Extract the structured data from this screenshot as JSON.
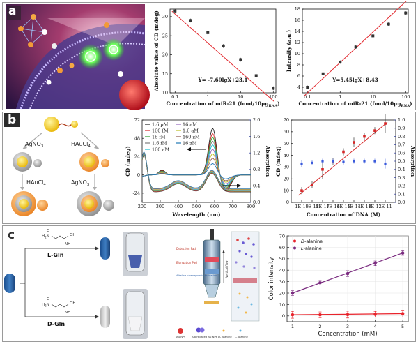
{
  "panel_labels": {
    "a": "a",
    "b": "b",
    "c": "c"
  },
  "a_illustration": {
    "type": "3D illustration of nanoparticle probes and a cell membrane"
  },
  "chart_data": [
    {
      "id": "a1",
      "type": "scatter",
      "title": "",
      "xlabel": "Concentration of miR-21 (fmol/10μg",
      "xlabel_sub": "RNA",
      "xlabel_end": ")",
      "ylabel": "Absolute value of CD (mdeg)",
      "xscale": "log",
      "xlim": [
        0.07,
        120
      ],
      "ylim": [
        10,
        32
      ],
      "xticks": [
        0.1,
        1,
        10,
        100
      ],
      "xtick_labels": [
        "0.1",
        "1",
        "10",
        "100"
      ],
      "yticks": [
        10,
        15,
        20,
        25,
        30
      ],
      "ytick_labels": [
        "10",
        "15",
        "20",
        "25",
        "30"
      ],
      "x": [
        0.1,
        0.3,
        1,
        3,
        10,
        30,
        100
      ],
      "y": [
        31.5,
        29.0,
        25.8,
        22.3,
        18.7,
        14.5,
        11.2
      ],
      "err": [
        0.5,
        0.5,
        0.5,
        0.5,
        0.5,
        0.5,
        0.5
      ],
      "fit": {
        "slope": -7.6,
        "intercept": 23.1
      },
      "equation": "Y= -7.60lgX+23.1"
    },
    {
      "id": "a2",
      "type": "scatter",
      "xlabel": "Concentration of miR-21 (fmol/10μg",
      "xlabel_sub": "RNA",
      "xlabel_end": ")",
      "ylabel": "Intensity (a.u.)",
      "xscale": "log",
      "xlim": [
        0.07,
        120
      ],
      "ylim": [
        3,
        18
      ],
      "xticks": [
        0.1,
        1,
        10,
        100
      ],
      "xtick_labels": [
        "0.1",
        "1",
        "10",
        "100"
      ],
      "yticks": [
        4,
        6,
        8,
        10,
        12,
        14,
        16,
        18
      ],
      "ytick_labels": [
        "4",
        "6",
        "8",
        "10",
        "12",
        "14",
        "16",
        "18"
      ],
      "x": [
        0.1,
        0.3,
        1,
        3,
        10,
        30,
        100
      ],
      "y": [
        4.0,
        6.4,
        8.5,
        11.2,
        13.2,
        15.3,
        17.3
      ],
      "err": [
        0.3,
        0.3,
        0.3,
        0.3,
        0.3,
        0.3,
        0.3
      ],
      "fit": {
        "slope": 5.45,
        "intercept": 8.43
      },
      "equation": "Y=5.45lgX+8.43"
    },
    {
      "id": "b1",
      "type": "line",
      "xlabel": "Wavelength (nm)",
      "ylabel": "CD (mdeg)",
      "ylabel_right": "Absorption",
      "xlim": [
        200,
        800
      ],
      "ylim": [
        -36,
        72
      ],
      "ylim_right": [
        0,
        2.0
      ],
      "xticks": [
        200,
        300,
        400,
        500,
        600,
        700,
        800
      ],
      "xtick_labels": [
        "200",
        "300",
        "400",
        "500",
        "600",
        "700",
        "800"
      ],
      "yticks": [
        -24,
        0,
        24,
        48,
        72
      ],
      "ytick_labels": [
        "-24",
        "0",
        "24",
        "48",
        "72"
      ],
      "yticks_right": [
        0.0,
        0.4,
        0.8,
        1.2,
        1.6,
        2.0
      ],
      "ytick_labels_right": [
        "0.0",
        "0.4",
        "0.8",
        "1.2",
        "1.6",
        "2.0"
      ],
      "series": [
        {
          "name": "1.6 pM",
          "color": "#222222",
          "peak": 62
        },
        {
          "name": "160 fM",
          "color": "#d62728",
          "peak": 55
        },
        {
          "name": "16 fM",
          "color": "#2ca02c",
          "peak": 50
        },
        {
          "name": "1.6 fM",
          "color": "#7f7f7f",
          "peak": 45
        },
        {
          "name": "160 aM",
          "color": "#17becf",
          "peak": 40
        },
        {
          "name": "16 aM",
          "color": "#9467bd",
          "peak": 34
        },
        {
          "name": "1.6 aM",
          "color": "#bcbd22",
          "peak": 28
        },
        {
          "name": "160 zM",
          "color": "#8c564b",
          "peak": 22
        },
        {
          "name": "16 zM",
          "color": "#1f77b4",
          "peak": 15
        }
      ],
      "legend_position": "top-left"
    },
    {
      "id": "b2",
      "type": "scatter",
      "xlabel": "Concentration of DNA (M)",
      "ylabel": "CD (mdeg)",
      "ylabel_right": "Absorption",
      "xlim": [
        0,
        10
      ],
      "ylim": [
        0,
        70
      ],
      "ylim_right": [
        0,
        1.0
      ],
      "xtick_labels": [
        "1E-19",
        "1E-18",
        "1E-17",
        "1E-16",
        "1E-15",
        "1E-14",
        "1E-13",
        "1E-12",
        "1E-11"
      ],
      "yticks": [
        0,
        10,
        20,
        30,
        40,
        50,
        60,
        70
      ],
      "ytick_labels": [
        "0",
        "10",
        "20",
        "30",
        "40",
        "50",
        "60",
        "70"
      ],
      "yticks_right": [
        0.0,
        0.1,
        0.2,
        0.3,
        0.4,
        0.5,
        0.6,
        0.7,
        0.8,
        0.9,
        1.0
      ],
      "ytick_labels_right": [
        "0.0",
        "0.1",
        "0.2",
        "0.3",
        "0.4",
        "0.5",
        "0.6",
        "0.7",
        "0.8",
        "0.9",
        "1.0"
      ],
      "series": [
        {
          "name": "CD",
          "color": "#d62728",
          "x": [
            1,
            2,
            3,
            4,
            5,
            6,
            7,
            8,
            9
          ],
          "y": [
            10,
            15,
            28,
            35,
            43,
            51,
            56,
            61,
            67
          ],
          "err": [
            3,
            3,
            8,
            3,
            3,
            4,
            3,
            3,
            8
          ]
        },
        {
          "name": "Absorption",
          "color": "#3b5bdb",
          "x": [
            1,
            2,
            3,
            4,
            5,
            6,
            7,
            8,
            9
          ],
          "y": [
            0.47,
            0.48,
            0.5,
            0.5,
            0.49,
            0.5,
            0.5,
            0.5,
            0.47
          ],
          "err": [
            0.04,
            0.03,
            0.03,
            0.03,
            0.03,
            0.03,
            0.03,
            0.03,
            0.06
          ]
        }
      ]
    },
    {
      "id": "c2",
      "type": "line",
      "xlabel": "Concentration (mM)",
      "ylabel": "Color intensity",
      "xlim": [
        0.8,
        5.2
      ],
      "ylim": [
        -5,
        70
      ],
      "xticks": [
        1,
        2,
        3,
        4,
        5
      ],
      "xtick_labels": [
        "1",
        "2",
        "3",
        "4",
        "5"
      ],
      "yticks": [
        0,
        10,
        20,
        30,
        40,
        50,
        60,
        70
      ],
      "ytick_labels": [
        "0",
        "10",
        "20",
        "30",
        "40",
        "50",
        "60",
        "70"
      ],
      "series": [
        {
          "name_prefix": "D",
          "name_suffix": "-alanine",
          "color": "#e8232b",
          "x": [
            1,
            2,
            3,
            4,
            5
          ],
          "y": [
            1.0,
            1.0,
            1.2,
            1.5,
            2.0
          ],
          "err": [
            3,
            2.5,
            3,
            2.5,
            3
          ]
        },
        {
          "name_prefix": "L",
          "name_suffix": "-alanine",
          "color": "#7b2c80",
          "x": [
            1,
            2,
            3,
            4,
            5
          ],
          "y": [
            20,
            29,
            37,
            46,
            55
          ],
          "err": [
            2,
            2,
            2.5,
            2,
            2
          ]
        }
      ],
      "legend_position": "top-left"
    }
  ],
  "b_scheme": {
    "reagent1": "AgNO",
    "reagent1_sub": "3",
    "reagent2": "HAuCl",
    "reagent2_sub": "4",
    "reagent3": "HAuCl",
    "reagent3_sub": "4",
    "reagent4": "AgNO",
    "reagent4_sub": "3"
  },
  "c_scheme": {
    "top_label": "L-Gln",
    "bottom_label": "D-Gln",
    "nh2": "NH",
    "nh2_sub": "2",
    "h2n": "H",
    "h2n_sub": "2",
    "h2n_end": "N",
    "oh": "OH",
    "o": "O"
  },
  "c_device": {
    "label_top": "Detection Pad",
    "label_mid": "Elongation Pad",
    "label_bottom": "Alkaline bioenzymatic activation",
    "flow_label": "Vertical flow",
    "legend": [
      "Au NPs",
      "Aggregated Au NPs",
      "D- Alanine",
      "L- Alanine"
    ]
  }
}
